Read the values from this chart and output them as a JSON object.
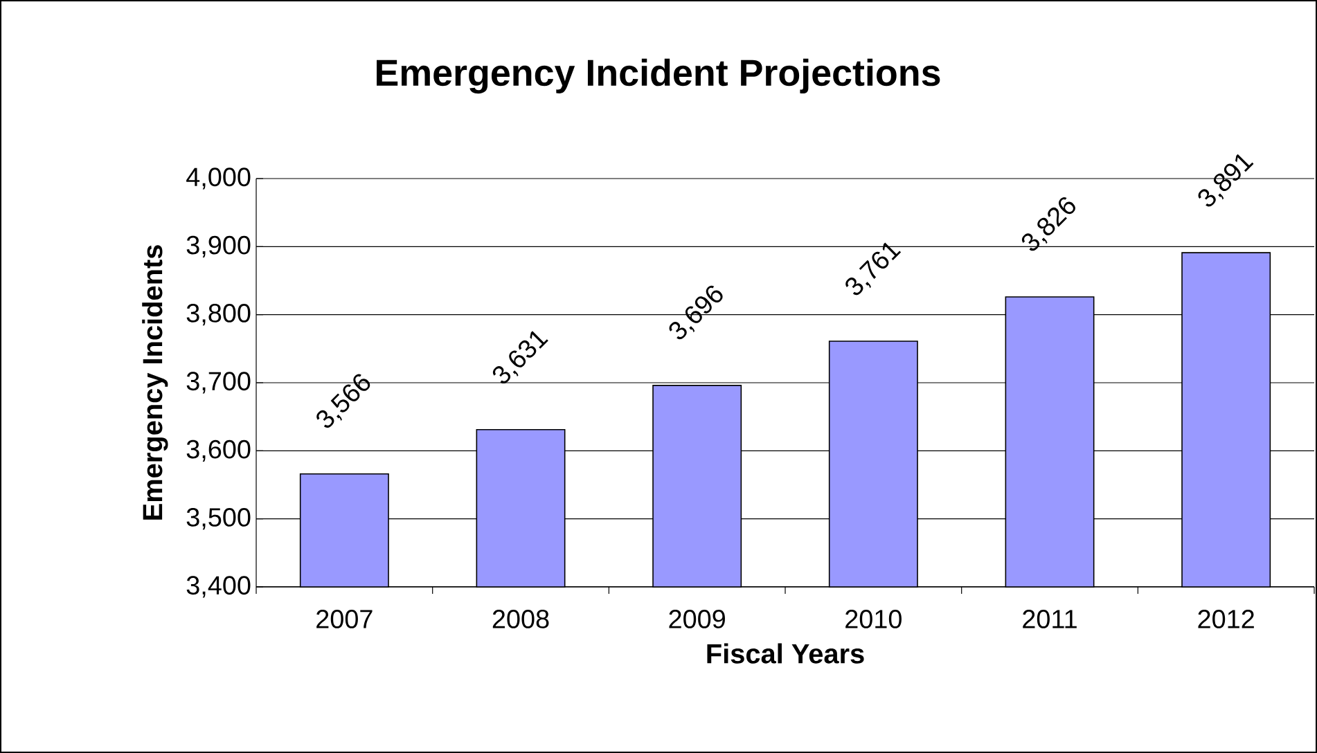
{
  "chart_data": {
    "type": "bar",
    "title": "Emergency Incident Projections",
    "xlabel": "Fiscal Years",
    "ylabel": "Emergency Incidents",
    "categories": [
      "2007",
      "2008",
      "2009",
      "2010",
      "2011",
      "2012"
    ],
    "values": [
      3566,
      3631,
      3696,
      3761,
      3826,
      3891
    ],
    "value_labels": [
      "3,566",
      "3,631",
      "3,696",
      "3,761",
      "3,826",
      "3,891"
    ],
    "color": "#9999ff",
    "ylim": [
      3400,
      4000
    ],
    "yticks": [
      {
        "value": 3400,
        "label": "3,400"
      },
      {
        "value": 3500,
        "label": "3,500"
      },
      {
        "value": 3600,
        "label": "3,600"
      },
      {
        "value": 3700,
        "label": "3,700"
      },
      {
        "value": 3800,
        "label": "3,800"
      },
      {
        "value": 3900,
        "label": "3,900"
      },
      {
        "value": 4000,
        "label": "4,000"
      }
    ],
    "grid": "y"
  }
}
